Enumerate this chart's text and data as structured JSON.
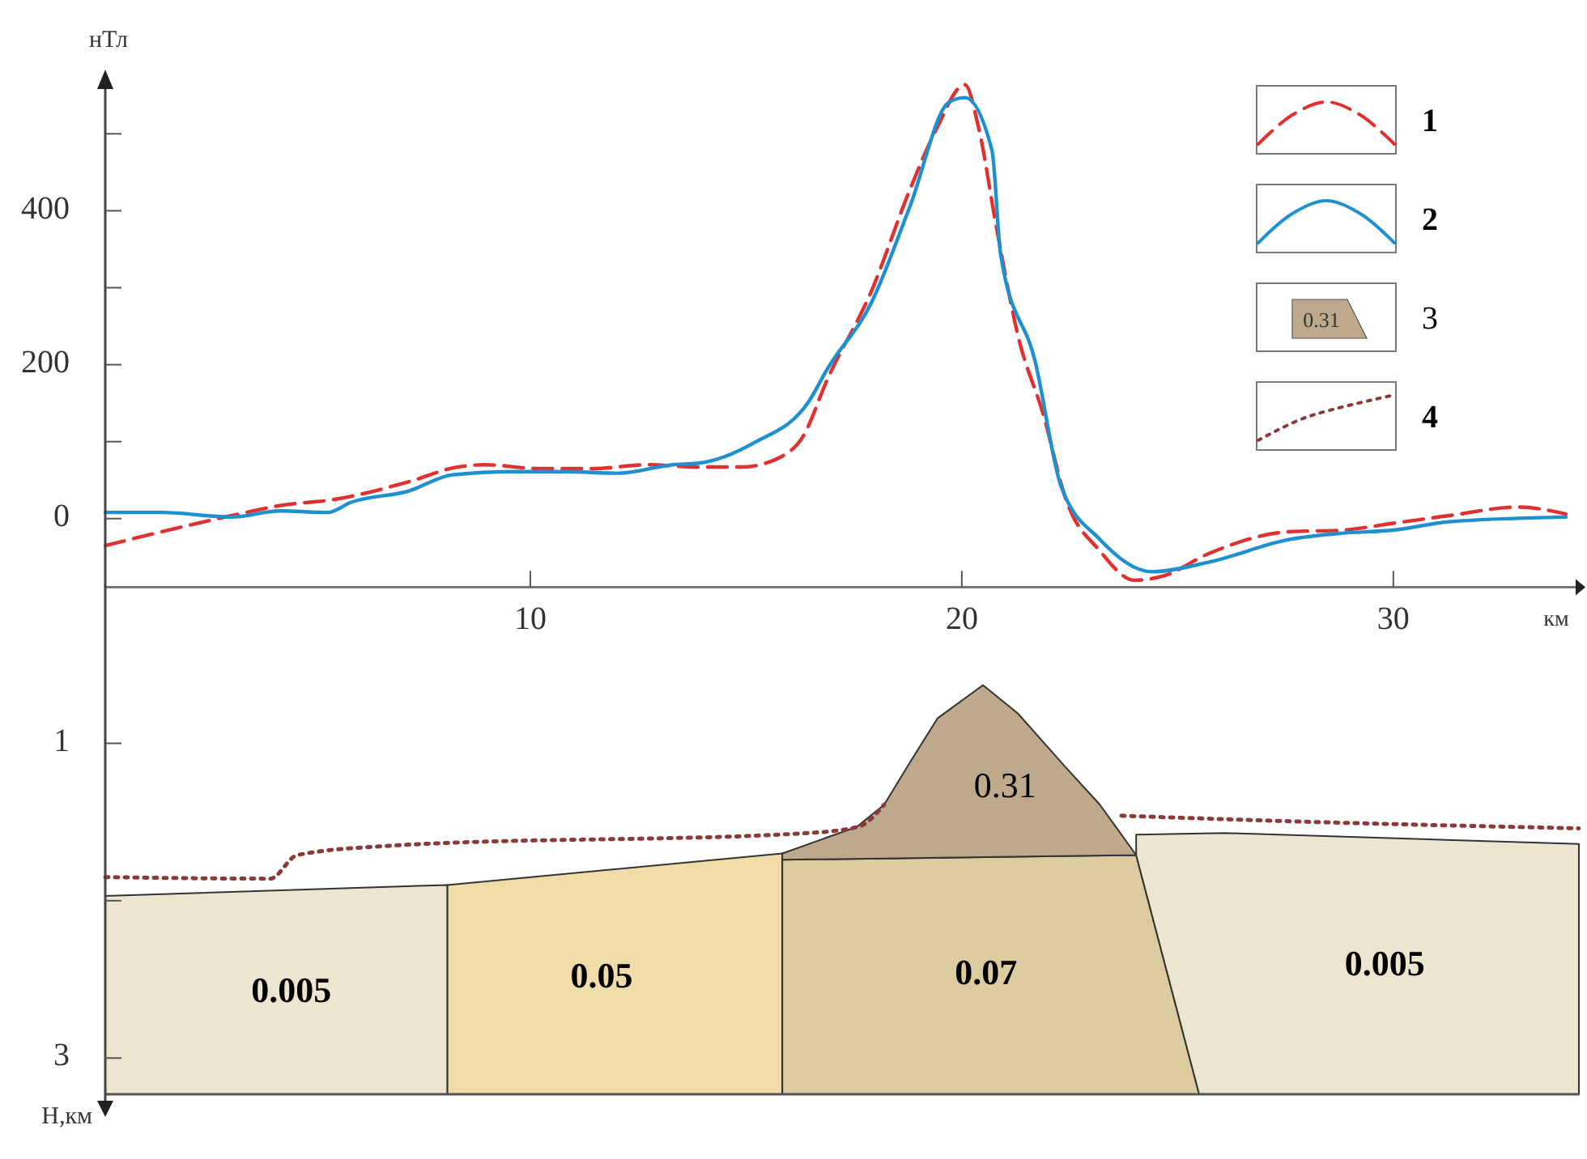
{
  "chart_data": [
    {
      "type": "line",
      "xlabel": "км",
      "ylabel": "нТл",
      "xlim": [
        0.15,
        34.3
      ],
      "xticks": [
        10,
        20,
        30
      ],
      "ylim": [
        -89,
        575
      ],
      "yticks": [
        0,
        {
          "value": 100,
          "label": null
        },
        200,
        {
          "value": 300,
          "label": null
        },
        400,
        {
          "value": 500,
          "label": null
        }
      ],
      "legend": "top right",
      "grid": false,
      "series": [
        {
          "name": "1",
          "color": "#e03030",
          "line_style": "dashed",
          "x": [
            0.15,
            3.33,
            4.2,
            5.47,
            7.19,
            8.31,
            8.95,
            10.2,
            11.46,
            12.7,
            13.9,
            14.9,
            15.8,
            16.3,
            16.9,
            17.9,
            18.8,
            19.4,
            20.07,
            20.4,
            20.8,
            21.3,
            21.9,
            22.4,
            23.2,
            24.0,
            24.7,
            25.7,
            27.6,
            28.8,
            30.0,
            31.3,
            32.9,
            34.0
          ],
          "values": [
            -35,
            7,
            17,
            25,
            48,
            67,
            70,
            65,
            65,
            70,
            67,
            67,
            80,
            105,
            183,
            295,
            428,
            505,
            564,
            505,
            379,
            238,
            133,
            27,
            -42,
            -80,
            -74,
            -46,
            -17,
            -15,
            -6,
            4,
            15,
            6
          ]
        },
        {
          "name": "2",
          "color": "#1e90d0",
          "line_style": "solid",
          "x": [
            0.15,
            1.46,
            3.07,
            4.2,
            5.3,
            5.84,
            7.19,
            8.2,
            9.6,
            10.8,
            12.06,
            13.3,
            13.9,
            15.2,
            16.45,
            16.9,
            17.9,
            18.8,
            19.7,
            20.07,
            20.7,
            20.9,
            21.7,
            22.3,
            23.2,
            24.4,
            25.7,
            27.6,
            28.8,
            30.0,
            31.3,
            34.0
          ],
          "values": [
            8,
            8,
            2,
            10,
            8,
            21,
            36,
            57,
            61,
            61,
            59,
            70,
            72,
            99,
            152,
            196,
            280,
            406,
            541,
            547,
            478,
            343,
            204,
            42,
            -27,
            -69,
            -57,
            -27,
            -19,
            -15,
            -4,
            2
          ]
        }
      ]
    },
    {
      "type": "line",
      "ylabel": "Н,км",
      "xlim": [
        0.15,
        34.3
      ],
      "ylim": [
        3.23,
        0
      ],
      "yticks": [
        1,
        {
          "value": 2,
          "label": null
        },
        3
      ],
      "tick_labels": "y",
      "legend": "top right",
      "grid": false,
      "annotations": [
        "0.005",
        "0.05",
        "0.07",
        "0.31",
        "0.005",
        "3"
      ],
      "series": [
        {
          "name": "4",
          "line_style": "dotted",
          "color": "#8b3a3a",
          "x": [
            0.15,
            3.97,
            4.6,
            6.8,
            16.44,
            17.6,
            18.2,
            23.2,
            23.7,
            28.2,
            34.3
          ],
          "values": [
            1.85,
            1.86,
            1.71,
            1.65,
            1.57,
            1.53,
            1.39,
            null,
            1.46,
            1.5,
            1.54
          ]
        }
      ]
    }
  ]
}
